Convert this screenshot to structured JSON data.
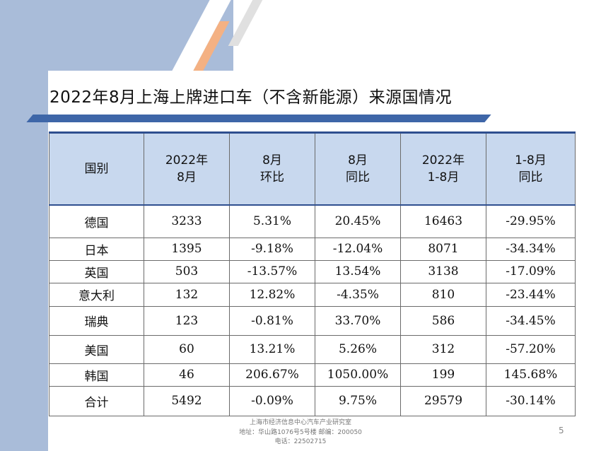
{
  "slide": {
    "title": "2022年8月上海上牌进口车（不含新能源）来源国情况",
    "page_number": "5"
  },
  "table": {
    "headers": [
      [
        "国别"
      ],
      [
        "2022年",
        "8月"
      ],
      [
        "8月",
        "环比"
      ],
      [
        "8月",
        "同比"
      ],
      [
        "2022年",
        "1-8月"
      ],
      [
        "1-8月",
        "同比"
      ]
    ],
    "rows": [
      [
        "德国",
        "3233",
        "5.31%",
        "20.45%",
        "16463",
        "-29.95%"
      ],
      [
        "日本",
        "1395",
        "-9.18%",
        "-12.04%",
        "8071",
        "-34.34%"
      ],
      [
        "英国",
        "503",
        "-13.57%",
        "13.54%",
        "3138",
        "-17.09%"
      ],
      [
        "意大利",
        "132",
        "12.82%",
        "-4.35%",
        "810",
        "-23.44%"
      ],
      [
        "瑞典",
        "123",
        "-0.81%",
        "33.70%",
        "586",
        "-34.45%"
      ],
      [
        "美国",
        "60",
        "13.21%",
        "5.26%",
        "312",
        "-57.20%"
      ],
      [
        "韩国",
        "46",
        "206.67%",
        "1050.00%",
        "199",
        "145.68%"
      ],
      [
        "合计",
        "5492",
        "-0.09%",
        "9.75%",
        "29579",
        "-30.14%"
      ]
    ]
  },
  "footer": {
    "line1": "上海市经济信息中心汽车产业研究室",
    "line2": "地址：华山路1076号5号楼    邮编：200050",
    "line3": "电话：22502715"
  },
  "colors": {
    "header_fill": "#c8d8ee",
    "accent_blue": "#3e66a8",
    "side_band": "#a9bcd9",
    "orange_accent": "#f4b183"
  }
}
